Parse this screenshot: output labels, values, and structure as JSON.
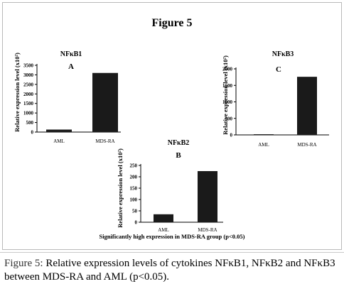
{
  "figure": {
    "title": "Figure 5",
    "footnote": "Significantly high expression in MDS-RA group (p<0.05)"
  },
  "caption": {
    "label": "Figure 5:",
    "text": " Relative expression levels of cytokines NFκB1, NFκB2 and NFκB3 between MDS-RA and AML (p<0.05)."
  },
  "chart_data": [
    {
      "type": "bar",
      "title": "NFκB1",
      "panel": "A",
      "categories": [
        "AML",
        "MDS-RA"
      ],
      "values": [
        130,
        3100
      ],
      "ylabel": "Relative expression level (x10²)",
      "yticks": [
        0,
        500,
        1000,
        1500,
        2000,
        2500,
        3000,
        3500
      ],
      "ylim": [
        0,
        3500
      ],
      "grid": false,
      "bar_color": "#1a1a1a"
    },
    {
      "type": "bar",
      "title": "NFκB2",
      "panel": "B",
      "categories": [
        "AML",
        "MDS-RA"
      ],
      "values": [
        35,
        225
      ],
      "ylabel": "Relative expression level (x10²)",
      "yticks": [
        0,
        50,
        100,
        150,
        200,
        250
      ],
      "ylim": [
        0,
        250
      ],
      "grid": false,
      "bar_color": "#1a1a1a"
    },
    {
      "type": "bar",
      "title": "NFκB3",
      "panel": "C",
      "categories": [
        "AML",
        "MDS-RA"
      ],
      "values": [
        20,
        1760
      ],
      "ylabel": "Relative expression level (x10²)",
      "yticks": [
        0,
        500,
        1000,
        1500,
        2000
      ],
      "ylim": [
        0,
        2000
      ],
      "grid": false,
      "bar_color": "#1a1a1a"
    }
  ]
}
